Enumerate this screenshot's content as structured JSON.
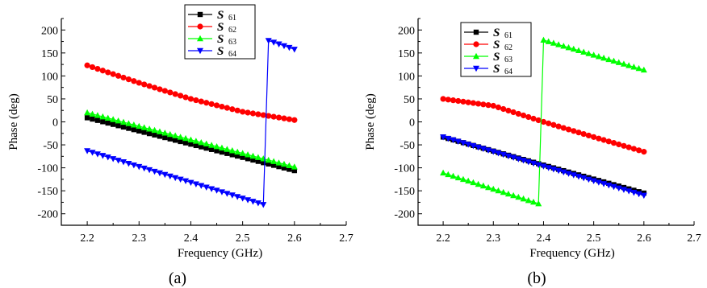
{
  "chart_data": [
    {
      "type": "line",
      "panel_label": "(a)",
      "xlabel": "Frequency (GHz)",
      "ylabel": "Phase (deg)",
      "xlim": [
        2.15,
        2.7
      ],
      "ylim": [
        -225,
        225
      ],
      "xticks": [
        2.2,
        2.3,
        2.4,
        2.5,
        2.6,
        2.7
      ],
      "yticks": [
        -200,
        -150,
        -100,
        -50,
        0,
        50,
        100,
        150,
        200
      ],
      "grid": false,
      "legend_position": "top-center",
      "x": {
        "start": 2.2,
        "end": 2.6,
        "count": 41
      },
      "series": [
        {
          "name": "S",
          "subscript": "61",
          "color": "#000000",
          "marker": "square",
          "segments": [
            {
              "x": [
                2.2,
                2.6
              ],
              "y": [
                9,
                -106
              ]
            }
          ]
        },
        {
          "name": "S",
          "subscript": "62",
          "color": "#ff0000",
          "marker": "circle",
          "segments": [
            {
              "x": [
                2.2,
                2.3,
                2.4,
                2.5,
                2.6
              ],
              "y": [
                123,
                85,
                50,
                22,
                4
              ]
            }
          ]
        },
        {
          "name": "S",
          "subscript": "63",
          "color": "#00ff00",
          "marker": "triangle-up",
          "segments": [
            {
              "x": [
                2.2,
                2.6
              ],
              "y": [
                20,
                -98
              ]
            }
          ]
        },
        {
          "name": "S",
          "subscript": "64",
          "color": "#0000ff",
          "marker": "triangle-down",
          "segments": [
            {
              "x": [
                2.2,
                2.54
              ],
              "y": [
                -63,
                -180
              ]
            },
            {
              "x": [
                2.55,
                2.6
              ],
              "y": [
                177,
                158
              ]
            }
          ]
        }
      ]
    },
    {
      "type": "line",
      "panel_label": "(b)",
      "xlabel": "Frequency (GHz)",
      "ylabel": "Phase (deg)",
      "xlim": [
        2.15,
        2.7
      ],
      "ylim": [
        -225,
        225
      ],
      "xticks": [
        2.2,
        2.3,
        2.4,
        2.5,
        2.6,
        2.7
      ],
      "yticks": [
        -200,
        -150,
        -100,
        -50,
        0,
        50,
        100,
        150,
        200
      ],
      "grid": false,
      "legend_position": "top-left",
      "x": {
        "start": 2.2,
        "end": 2.6,
        "count": 41
      },
      "series": [
        {
          "name": "S",
          "subscript": "61",
          "color": "#000000",
          "marker": "square",
          "segments": [
            {
              "x": [
                2.2,
                2.6
              ],
              "y": [
                -33,
                -155
              ]
            }
          ]
        },
        {
          "name": "S",
          "subscript": "62",
          "color": "#ff0000",
          "marker": "circle",
          "segments": [
            {
              "x": [
                2.2,
                2.3,
                2.4,
                2.5,
                2.6
              ],
              "y": [
                50,
                35,
                0,
                -33,
                -65
              ]
            }
          ]
        },
        {
          "name": "S",
          "subscript": "63",
          "color": "#00ff00",
          "marker": "triangle-up",
          "segments": [
            {
              "x": [
                2.2,
                2.39
              ],
              "y": [
                -111,
                -178
              ]
            },
            {
              "x": [
                2.4,
                2.6
              ],
              "y": [
                178,
                113
              ]
            }
          ]
        },
        {
          "name": "S",
          "subscript": "64",
          "color": "#0000ff",
          "marker": "triangle-down",
          "segments": [
            {
              "x": [
                2.2,
                2.6
              ],
              "y": [
                -33,
                -160
              ]
            }
          ]
        }
      ]
    }
  ]
}
